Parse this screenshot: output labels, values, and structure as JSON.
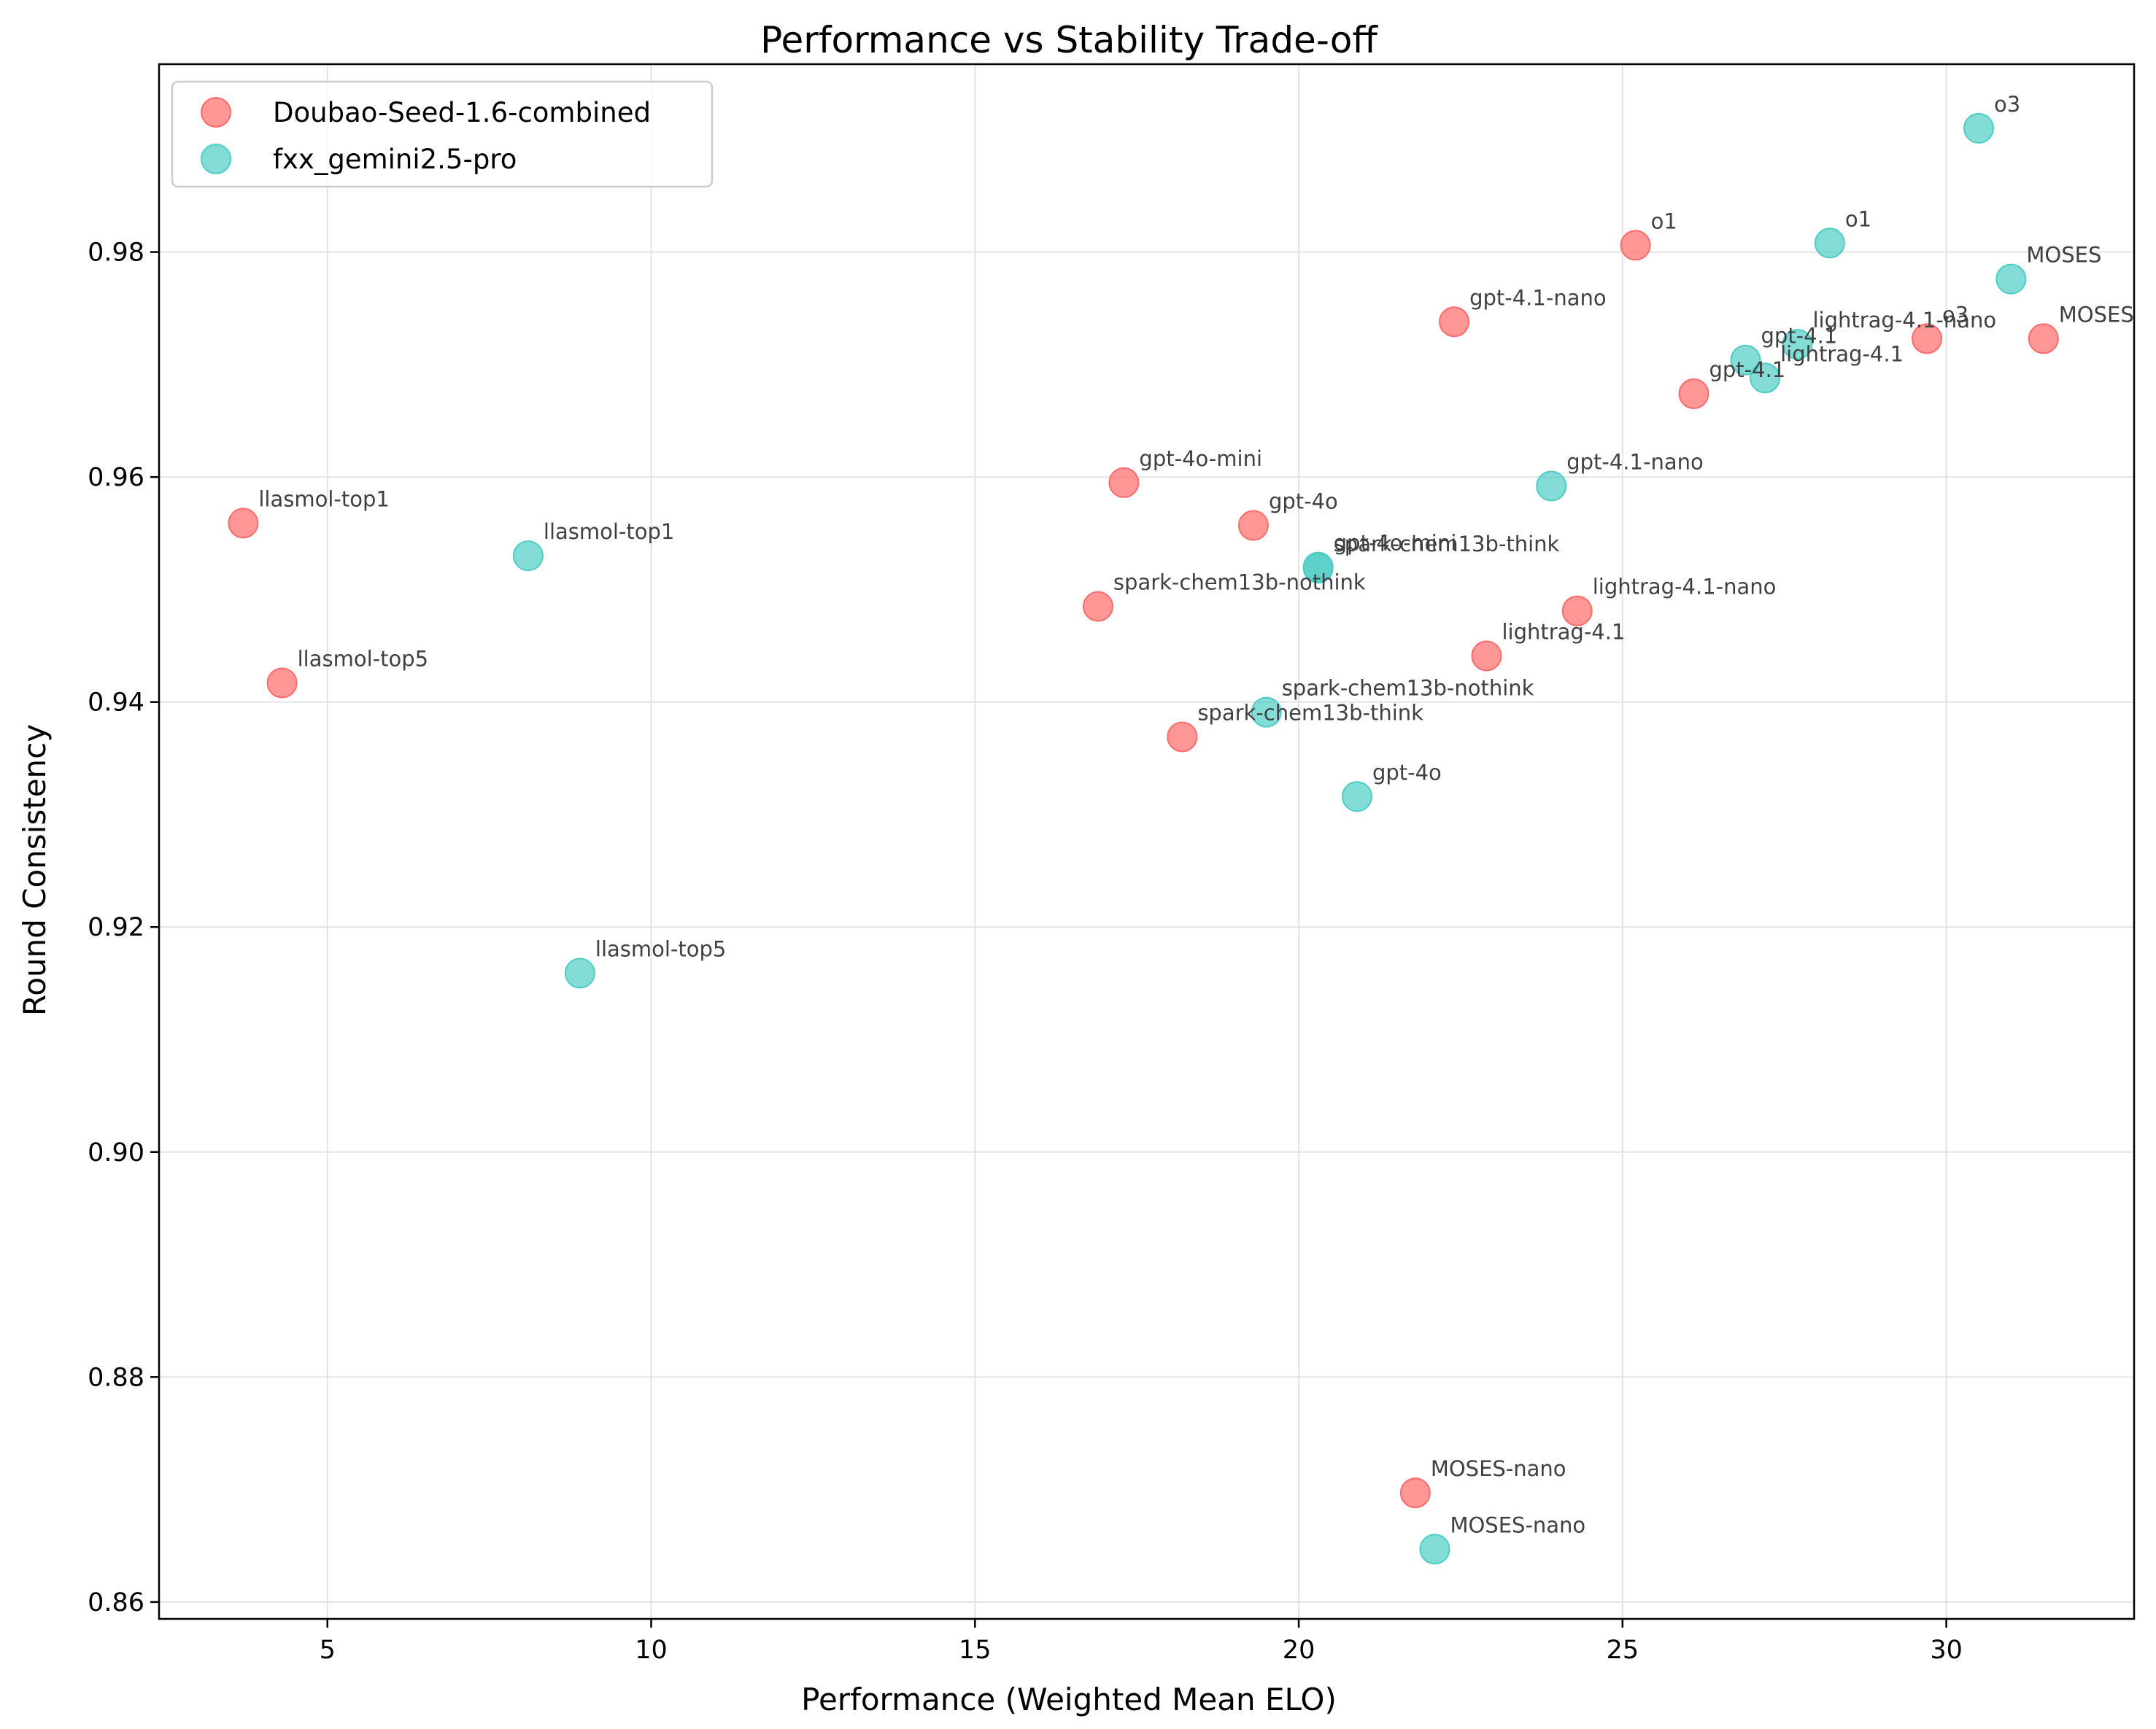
{
  "chart_data": {
    "type": "scatter",
    "title": "Performance vs Stability Trade-off",
    "xlabel": "Performance (Weighted Mean ELO)",
    "ylabel": "Round Consistency",
    "xlim": [
      2.4,
      32.9
    ],
    "ylim": [
      0.8585,
      0.9967
    ],
    "xticks": [
      "5",
      "10",
      "15",
      "20",
      "25",
      "30"
    ],
    "yticks": [
      "0.86",
      "0.88",
      "0.90",
      "0.92",
      "0.94",
      "0.96",
      "0.98"
    ],
    "grid": true,
    "legend_position": "top-left",
    "series": [
      {
        "name": "Doubao-Seed-1.6-combined",
        "color": "#ff6b6b",
        "points": [
          {
            "label": "o1",
            "x": 25.2,
            "y": 0.9806
          },
          {
            "label": "gpt-4.1-nano",
            "x": 22.4,
            "y": 0.9738
          },
          {
            "label": "o3",
            "x": 29.7,
            "y": 0.9723
          },
          {
            "label": "MOSES",
            "x": 31.5,
            "y": 0.9723
          },
          {
            "label": "gpt-4.1",
            "x": 26.1,
            "y": 0.9674
          },
          {
            "label": "gpt-4o-mini",
            "x": 17.3,
            "y": 0.9595
          },
          {
            "label": "gpt-4o",
            "x": 19.3,
            "y": 0.9557
          },
          {
            "label": "llasmol-top1",
            "x": 3.7,
            "y": 0.9559
          },
          {
            "label": "spark-chem13b-nothink",
            "x": 16.9,
            "y": 0.9485
          },
          {
            "label": "lightrag-4.1-nano",
            "x": 24.3,
            "y": 0.9481
          },
          {
            "label": "lightrag-4.1",
            "x": 22.9,
            "y": 0.9441
          },
          {
            "label": "llasmol-top5",
            "x": 4.3,
            "y": 0.9417
          },
          {
            "label": "spark-chem13b-think",
            "x": 18.2,
            "y": 0.9369
          },
          {
            "label": "MOSES-nano",
            "x": 21.8,
            "y": 0.8697
          }
        ]
      },
      {
        "name": "fxx_gemini2.5-pro",
        "color": "#4ecdc4",
        "points": [
          {
            "label": "o3",
            "x": 30.5,
            "y": 0.991
          },
          {
            "label": "o1",
            "x": 28.2,
            "y": 0.9808
          },
          {
            "label": "MOSES",
            "x": 31.0,
            "y": 0.9776
          },
          {
            "label": "lightrag-4.1-nano",
            "x": 27.7,
            "y": 0.9718
          },
          {
            "label": "gpt-4.1",
            "x": 26.9,
            "y": 0.9704
          },
          {
            "label": "lightrag-4.1",
            "x": 27.2,
            "y": 0.9688
          },
          {
            "label": "gpt-4.1-nano",
            "x": 23.9,
            "y": 0.9592
          },
          {
            "label": "llasmol-top1",
            "x": 8.1,
            "y": 0.953
          },
          {
            "label": "gpt-4o-mini",
            "x": 20.3,
            "y": 0.952
          },
          {
            "label": "spark-chem13b-think",
            "x": 20.3,
            "y": 0.9519
          },
          {
            "label": "spark-chem13b-nothink",
            "x": 19.5,
            "y": 0.9391
          },
          {
            "label": "gpt-4o",
            "x": 20.9,
            "y": 0.9316
          },
          {
            "label": "llasmol-top5",
            "x": 8.9,
            "y": 0.9159
          },
          {
            "label": "MOSES-nano",
            "x": 22.1,
            "y": 0.8647
          }
        ]
      }
    ]
  }
}
